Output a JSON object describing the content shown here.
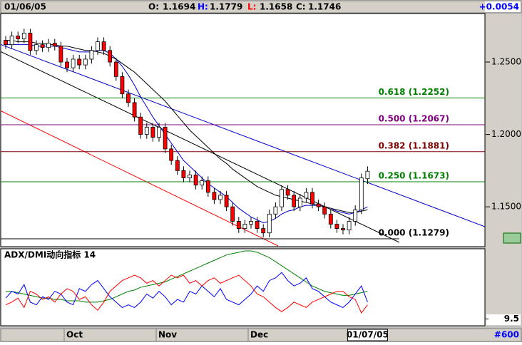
{
  "header": {
    "date": "01/06/05",
    "fields": [
      {
        "label": "O:",
        "value": "1.1694"
      },
      {
        "label": "H:",
        "value": "1.1779"
      },
      {
        "label": "L:",
        "value": "1.1658"
      },
      {
        "label": "C:",
        "value": "1.1746"
      }
    ],
    "change": "+0.0054"
  },
  "footer": {
    "id": "#600"
  },
  "chart_data": [
    {
      "type": "candlestick",
      "categories": [
        null,
        null,
        null,
        null,
        null,
        null,
        null,
        null,
        null,
        null,
        "Oct",
        null,
        null,
        null,
        null,
        null,
        null,
        null,
        null,
        null,
        null,
        null,
        null,
        null,
        null,
        "Nov",
        null,
        null,
        null,
        null,
        null,
        null,
        null,
        null,
        null,
        null,
        null,
        null,
        null,
        null,
        "Dec",
        null,
        null,
        null,
        null,
        null,
        null,
        null,
        null,
        null,
        null,
        null,
        null,
        null,
        null,
        null,
        null,
        null,
        null,
        "01/07/05"
      ],
      "open": [
        1.265,
        1.262,
        1.268,
        1.266,
        1.27,
        1.258,
        1.262,
        1.26,
        1.263,
        1.261,
        1.25,
        1.246,
        1.252,
        1.248,
        1.252,
        1.258,
        1.264,
        1.258,
        1.25,
        1.24,
        1.228,
        1.222,
        1.212,
        1.2,
        1.205,
        1.198,
        1.205,
        1.19,
        1.182,
        1.175,
        1.17,
        1.172,
        1.165,
        1.168,
        1.16,
        1.155,
        1.158,
        1.15,
        1.14,
        1.135,
        1.138,
        1.14,
        1.135,
        1.132,
        1.145,
        1.15,
        1.162,
        1.158,
        1.15,
        1.156,
        1.16,
        1.152,
        1.15,
        1.145,
        1.138,
        1.135,
        1.134,
        1.14,
        1.148,
        1.1694
      ],
      "high": [
        1.268,
        1.271,
        1.271,
        1.273,
        1.273,
        1.265,
        1.265,
        1.266,
        1.266,
        1.264,
        1.253,
        1.255,
        1.255,
        1.255,
        1.261,
        1.267,
        1.267,
        1.261,
        1.253,
        1.243,
        1.231,
        1.225,
        1.215,
        1.208,
        1.208,
        1.208,
        1.208,
        1.193,
        1.185,
        1.178,
        1.175,
        1.175,
        1.171,
        1.171,
        1.163,
        1.161,
        1.161,
        1.153,
        1.143,
        1.141,
        1.143,
        1.143,
        1.138,
        1.148,
        1.153,
        1.165,
        1.165,
        1.161,
        1.159,
        1.163,
        1.163,
        1.155,
        1.153,
        1.148,
        1.141,
        1.138,
        1.143,
        1.151,
        1.173,
        1.1779
      ],
      "low": [
        1.259,
        1.259,
        1.263,
        1.263,
        1.255,
        1.255,
        1.257,
        1.257,
        1.258,
        1.247,
        1.243,
        1.243,
        1.245,
        1.245,
        1.249,
        1.255,
        1.255,
        1.247,
        1.237,
        1.225,
        1.219,
        1.209,
        1.197,
        1.197,
        1.195,
        1.195,
        1.187,
        1.179,
        1.172,
        1.167,
        1.167,
        1.162,
        1.162,
        1.157,
        1.152,
        1.152,
        1.147,
        1.137,
        1.132,
        1.132,
        1.135,
        1.132,
        1.129,
        1.129,
        1.142,
        1.147,
        1.155,
        1.147,
        1.147,
        1.153,
        1.149,
        1.147,
        1.142,
        1.135,
        1.132,
        1.131,
        1.131,
        1.137,
        1.145,
        1.1658
      ],
      "close": [
        1.262,
        1.268,
        1.266,
        1.27,
        1.258,
        1.262,
        1.26,
        1.263,
        1.261,
        1.25,
        1.246,
        1.252,
        1.248,
        1.252,
        1.258,
        1.264,
        1.258,
        1.25,
        1.24,
        1.228,
        1.222,
        1.212,
        1.2,
        1.205,
        1.198,
        1.205,
        1.19,
        1.182,
        1.175,
        1.17,
        1.172,
        1.165,
        1.168,
        1.16,
        1.155,
        1.158,
        1.15,
        1.14,
        1.135,
        1.138,
        1.14,
        1.135,
        1.132,
        1.145,
        1.15,
        1.162,
        1.158,
        1.15,
        1.156,
        1.16,
        1.152,
        1.15,
        1.145,
        1.138,
        1.135,
        1.134,
        1.14,
        1.148,
        1.17,
        1.1746
      ],
      "up_color": "#ffffff",
      "down_color": "#ff0000",
      "lines": [
        {
          "color": "#0000cc",
          "values": [
            1.262,
            1.262,
            1.262,
            1.262,
            1.262,
            1.261,
            1.261,
            1.261,
            1.261,
            1.26,
            1.259,
            1.258,
            1.257,
            1.257,
            1.257,
            1.258,
            1.258,
            1.256,
            1.252,
            1.247,
            1.241,
            1.234,
            1.226,
            1.219,
            1.212,
            1.206,
            1.2,
            1.194,
            1.188,
            1.182,
            1.178,
            1.174,
            1.17,
            1.166,
            1.163,
            1.16,
            1.157,
            1.153,
            1.149,
            1.146,
            1.143,
            1.141,
            1.139,
            1.14,
            1.142,
            1.145,
            1.147,
            1.148,
            1.15,
            1.151,
            1.151,
            1.151,
            1.15,
            1.149,
            1.147,
            1.146,
            1.145,
            1.146,
            1.148,
            1.15
          ]
        },
        {
          "color": "#000000",
          "values": [
            1.265,
            1.265,
            1.264,
            1.264,
            1.264,
            1.263,
            1.263,
            1.262,
            1.262,
            1.261,
            1.261,
            1.26,
            1.259,
            1.258,
            1.258,
            1.257,
            1.256,
            1.254,
            1.252,
            1.249,
            1.246,
            1.243,
            1.239,
            1.235,
            1.231,
            1.227,
            1.223,
            1.218,
            1.213,
            1.208,
            1.203,
            1.199,
            1.195,
            1.191,
            1.187,
            1.183,
            1.18,
            1.176,
            1.173,
            1.17,
            1.167,
            1.164,
            1.162,
            1.16,
            1.158,
            1.157,
            1.156,
            1.155,
            1.154,
            1.153,
            1.152,
            1.151,
            1.15,
            1.149,
            1.148,
            1.147,
            1.146,
            1.146,
            1.147,
            1.148
          ]
        }
      ],
      "levels": [
        {
          "label": "0.618 (1.2252)",
          "value": 1.2252,
          "color": "#008000"
        },
        {
          "label": "0.500 (1.2067)",
          "value": 1.2067,
          "color": "#800080"
        },
        {
          "label": "0.382 (1.1881)",
          "value": 1.1881,
          "color": "#800000"
        },
        {
          "label": "0.250 (1.1673)",
          "value": 1.1673,
          "color": "#008000"
        },
        {
          "label": "0.000 (1.1279)",
          "value": 1.1279,
          "color": "#000000"
        }
      ],
      "ylim": [
        1.123,
        1.283
      ],
      "yticks": [
        {
          "value": 1.25,
          "label": "1.2500"
        },
        {
          "value": 1.2,
          "label": "1.2000"
        },
        {
          "value": 1.15,
          "label": "1.1500"
        }
      ]
    },
    {
      "type": "line",
      "title": "ADX/DMI动向指标 14",
      "series": [
        {
          "color": "#008000",
          "values": [
            30,
            30,
            29,
            28,
            27,
            26,
            25,
            25,
            24,
            24,
            23,
            23,
            23,
            22,
            22,
            22,
            23,
            24,
            26,
            28,
            30,
            31,
            33,
            34,
            35,
            36,
            37,
            39,
            41,
            43,
            45,
            47,
            49,
            51,
            53,
            55,
            57,
            58,
            59,
            60,
            60,
            59,
            57,
            55,
            52,
            49,
            46,
            43,
            40,
            37,
            34,
            32,
            30,
            29,
            28,
            27,
            27,
            28,
            29,
            30
          ]
        },
        {
          "color": "#0000ff",
          "values": [
            25,
            30,
            28,
            35,
            22,
            20,
            26,
            24,
            30,
            28,
            22,
            20,
            32,
            30,
            35,
            38,
            32,
            26,
            22,
            18,
            20,
            18,
            22,
            28,
            25,
            30,
            26,
            20,
            24,
            22,
            30,
            28,
            34,
            30,
            26,
            32,
            24,
            22,
            20,
            24,
            28,
            34,
            30,
            38,
            40,
            44,
            38,
            34,
            36,
            40,
            32,
            30,
            26,
            22,
            20,
            18,
            22,
            28,
            34,
            22
          ]
        },
        {
          "color": "#ff0000",
          "values": [
            20,
            22,
            25,
            18,
            30,
            28,
            24,
            26,
            22,
            28,
            32,
            30,
            24,
            26,
            20,
            16,
            22,
            30,
            34,
            38,
            40,
            42,
            40,
            36,
            38,
            34,
            38,
            42,
            40,
            42,
            36,
            38,
            34,
            38,
            40,
            36,
            38,
            40,
            42,
            38,
            34,
            28,
            26,
            22,
            18,
            15,
            18,
            22,
            20,
            18,
            22,
            24,
            26,
            28,
            30,
            30,
            26,
            24,
            14,
            20
          ]
        }
      ],
      "ylim": [
        5,
        60
      ],
      "yticks": [
        9.5
      ]
    }
  ]
}
